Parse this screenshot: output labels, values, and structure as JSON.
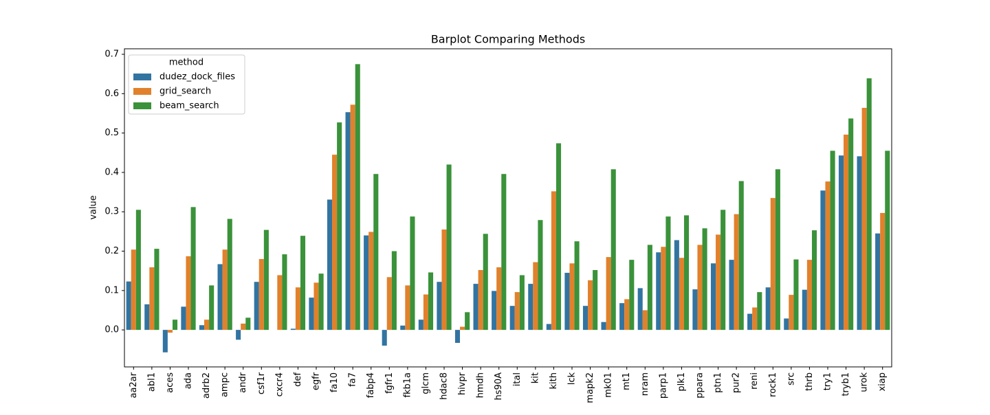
{
  "chart_data": {
    "type": "grouped-bar",
    "title": "Barplot Comparing Methods",
    "y_label": "value",
    "legend_title": "method",
    "legend_position": "upper left",
    "categories": [
      "aa2ar",
      "abl1",
      "aces",
      "ada",
      "adrb2",
      "ampc",
      "andr",
      "csf1r",
      "cxcr4",
      "def",
      "egfr",
      "fa10",
      "fa7",
      "fabp4",
      "fgfr1",
      "fkb1a",
      "glcm",
      "hdac8",
      "hivpr",
      "hmdh",
      "hs90A",
      "ital",
      "kit",
      "kith",
      "lck",
      "mapk2",
      "mk01",
      "mt1",
      "nram",
      "parp1",
      "plk1",
      "ppara",
      "ptn1",
      "pur2",
      "reni",
      "rock1",
      "src",
      "thrb",
      "try1",
      "tryb1",
      "urok",
      "xiap"
    ],
    "series": [
      {
        "name": "dudez_dock_files",
        "color": "#3274a1",
        "values": [
          0.123,
          0.065,
          -0.057,
          0.059,
          0.012,
          0.167,
          -0.025,
          0.122,
          0.0,
          0.003,
          0.082,
          0.331,
          0.553,
          0.24,
          -0.04,
          0.011,
          0.026,
          0.122,
          -0.033,
          0.117,
          0.099,
          0.061,
          0.117,
          0.015,
          0.145,
          0.061,
          0.02,
          0.068,
          0.106,
          0.197,
          0.228,
          0.103,
          0.169,
          0.178,
          0.041,
          0.108,
          0.029,
          0.102,
          0.354,
          0.443,
          0.441,
          0.245
        ]
      },
      {
        "name": "grid_search",
        "color": "#e1812c",
        "values": [
          0.204,
          0.159,
          -0.007,
          0.187,
          0.026,
          0.204,
          0.016,
          0.18,
          0.139,
          0.108,
          0.12,
          0.445,
          0.572,
          0.249,
          0.134,
          0.113,
          0.09,
          0.255,
          0.008,
          0.152,
          0.159,
          0.096,
          0.172,
          0.352,
          0.169,
          0.126,
          0.185,
          0.078,
          0.05,
          0.211,
          0.183,
          0.216,
          0.242,
          0.294,
          0.057,
          0.335,
          0.089,
          0.178,
          0.377,
          0.496,
          0.564,
          0.297
        ]
      },
      {
        "name": "beam_search",
        "color": "#3a923a",
        "values": [
          0.305,
          0.206,
          0.026,
          0.312,
          0.113,
          0.282,
          0.031,
          0.254,
          0.192,
          0.239,
          0.143,
          0.527,
          0.675,
          0.396,
          0.2,
          0.288,
          0.146,
          0.42,
          0.045,
          0.244,
          0.396,
          0.139,
          0.279,
          0.474,
          0.225,
          0.152,
          0.408,
          0.178,
          0.216,
          0.288,
          0.291,
          0.258,
          0.305,
          0.378,
          0.096,
          0.408,
          0.179,
          0.253,
          0.455,
          0.537,
          0.639,
          0.455
        ]
      }
    ],
    "ylim": [
      -0.094,
      0.714
    ],
    "yticks": [
      {
        "value": 0,
        "label": "0.0"
      },
      0.1,
      0.2,
      0.3,
      0.4,
      0.5,
      0.6,
      0.7
    ],
    "grid": false
  }
}
